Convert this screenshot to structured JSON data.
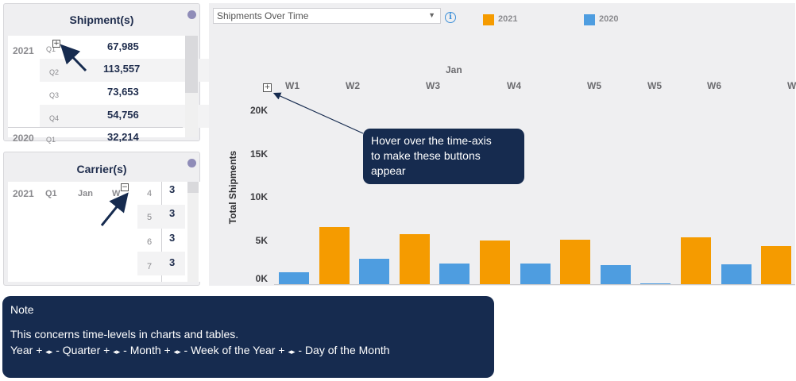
{
  "shipments_panel": {
    "title": "Shipment(s)",
    "year_2021": "2021",
    "year_2020": "2020",
    "q1_label": "Q1",
    "rows": [
      {
        "quarter": "",
        "value": "67,985"
      },
      {
        "quarter": "Q2",
        "value": "113,557"
      },
      {
        "quarter": "Q3",
        "value": "73,653"
      },
      {
        "quarter": "Q4",
        "value": "54,756"
      },
      {
        "quarter": "Q1",
        "value": "32,214"
      }
    ]
  },
  "carrier_panel": {
    "title": "Carrier(s)",
    "year": "2021",
    "quarter": "Q1",
    "month": "Jan",
    "week": "W",
    "rows": [
      {
        "num": "4",
        "value": "3"
      },
      {
        "num": "5",
        "value": "3"
      },
      {
        "num": "6",
        "value": "3"
      },
      {
        "num": "7",
        "value": "3"
      }
    ]
  },
  "chart": {
    "dropdown_value": "Shipments Over Time",
    "info_icon": "info-icon",
    "month_label": "Jan",
    "ylabel": "Total Shipments",
    "yticks": [
      "20K",
      "15K",
      "10K",
      "5K",
      "0K"
    ],
    "weeks": [
      "W1",
      "W2",
      "W3",
      "W4",
      "W5",
      "W5",
      "W6",
      "W"
    ]
  },
  "chart_data": {
    "type": "bar",
    "ylabel": "Total Shipments",
    "ylim": [
      0,
      20000
    ],
    "series": [
      {
        "name": "2021",
        "color": "#f59b00"
      },
      {
        "name": "2020",
        "color": "#4e9de0"
      }
    ],
    "bars": [
      {
        "series": "2020",
        "value": 1400
      },
      {
        "series": "2021",
        "value": 6600
      },
      {
        "series": "2020",
        "value": 2900
      },
      {
        "series": "2021",
        "value": 5800
      },
      {
        "series": "2020",
        "value": 2400
      },
      {
        "series": "2021",
        "value": 5000
      },
      {
        "series": "2020",
        "value": 2400
      },
      {
        "series": "2021",
        "value": 5100
      },
      {
        "series": "2020",
        "value": 2200
      },
      {
        "series": "2020",
        "value": 100
      },
      {
        "series": "2021",
        "value": 5400
      },
      {
        "series": "2020",
        "value": 2300
      },
      {
        "series": "2021",
        "value": 4400
      }
    ]
  },
  "tooltip": {
    "lines": [
      "Hover over the time-axis",
      "to make these buttons",
      "appear"
    ]
  },
  "note": {
    "title": "Note",
    "line1": "This concerns time-levels in charts and tables.",
    "hierarchy": [
      "Year",
      "Quarter",
      "Month",
      "Week of the Year",
      "Day of the Month"
    ],
    "expand_symbol": "+",
    "arrows_symbol": "◂▸",
    "separator": "-"
  }
}
